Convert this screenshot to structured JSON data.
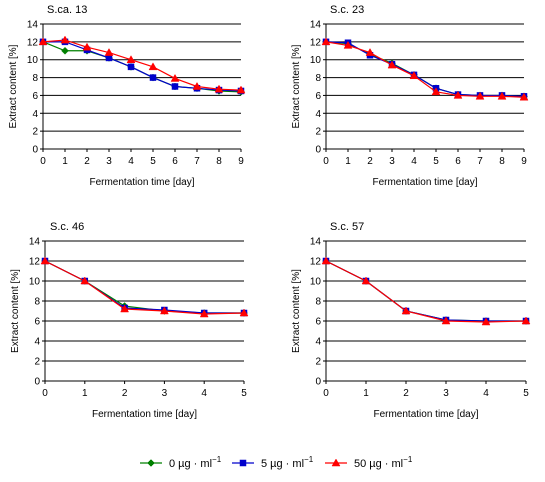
{
  "chart_data": [
    {
      "type": "line",
      "title": "S.ca. 13",
      "xlabel": "Fermentation time [day]",
      "ylabel": "Extract content [%]",
      "xlim": [
        0,
        9
      ],
      "ylim": [
        0,
        14
      ],
      "xticks": [
        0,
        1,
        2,
        3,
        4,
        5,
        6,
        7,
        8,
        9
      ],
      "yticks": [
        0,
        2,
        4,
        6,
        8,
        10,
        12,
        14
      ],
      "grid": "horizontal",
      "series": [
        {
          "name": "0 µg·ml⁻¹",
          "x": [
            0,
            1,
            2,
            3,
            4,
            5,
            6,
            7,
            8,
            9
          ],
          "y": [
            12,
            11,
            11,
            10.2,
            9.2,
            8.0,
            7.0,
            6.8,
            6.5,
            6.4
          ]
        },
        {
          "name": "5 µg·ml⁻¹",
          "x": [
            0,
            1,
            2,
            3,
            4,
            5,
            6,
            7,
            8,
            9
          ],
          "y": [
            12,
            12,
            11.1,
            10.2,
            9.2,
            8.0,
            7.0,
            6.8,
            6.6,
            6.5
          ]
        },
        {
          "name": "50 µg·ml⁻¹",
          "x": [
            0,
            1,
            2,
            3,
            4,
            5,
            6,
            7,
            8,
            9
          ],
          "y": [
            12,
            12.2,
            11.4,
            10.8,
            10.0,
            9.2,
            7.9,
            7.0,
            6.7,
            6.6
          ]
        }
      ]
    },
    {
      "type": "line",
      "title": "S.c. 23",
      "xlabel": "Fermentation time [day]",
      "ylabel": "Extract content [%]",
      "xlim": [
        0,
        9
      ],
      "ylim": [
        0,
        14
      ],
      "xticks": [
        0,
        1,
        2,
        3,
        4,
        5,
        6,
        7,
        8,
        9
      ],
      "yticks": [
        0,
        2,
        4,
        6,
        8,
        10,
        12,
        14
      ],
      "grid": "horizontal",
      "series": [
        {
          "name": "0 µg·ml⁻¹",
          "x": [
            0,
            1,
            2,
            3,
            4,
            5,
            6,
            7,
            8,
            9
          ],
          "y": [
            12,
            11.8,
            10.6,
            9.6,
            8.3,
            6.8,
            6.1,
            6.0,
            6.0,
            5.9
          ]
        },
        {
          "name": "5 µg·ml⁻¹",
          "x": [
            0,
            1,
            2,
            3,
            4,
            5,
            6,
            7,
            8,
            9
          ],
          "y": [
            12,
            11.9,
            10.5,
            9.5,
            8.3,
            6.8,
            6.1,
            6.0,
            6.0,
            5.9
          ]
        },
        {
          "name": "50 µg·ml⁻¹",
          "x": [
            0,
            1,
            2,
            3,
            4,
            5,
            6,
            7,
            8,
            9
          ],
          "y": [
            12,
            11.6,
            10.8,
            9.4,
            8.2,
            6.4,
            6.0,
            5.9,
            5.9,
            5.8
          ]
        }
      ]
    },
    {
      "type": "line",
      "title": "S.c. 46",
      "xlabel": "Fermentation time [day]",
      "ylabel": "Extract content [%]",
      "xlim": [
        0,
        5
      ],
      "ylim": [
        0,
        14
      ],
      "xticks": [
        0,
        1,
        2,
        3,
        4,
        5
      ],
      "yticks": [
        0,
        2,
        4,
        6,
        8,
        10,
        12,
        14
      ],
      "grid": "horizontal",
      "series": [
        {
          "name": "0 µg·ml⁻¹",
          "x": [
            0,
            1,
            2,
            3,
            4,
            5
          ],
          "y": [
            12,
            10,
            7.5,
            7.0,
            6.8,
            6.8
          ]
        },
        {
          "name": "5 µg·ml⁻¹",
          "x": [
            0,
            1,
            2,
            3,
            4,
            5
          ],
          "y": [
            12,
            10,
            7.3,
            7.1,
            6.8,
            6.8
          ]
        },
        {
          "name": "50 µg·ml⁻¹",
          "x": [
            0,
            1,
            2,
            3,
            4,
            5
          ],
          "y": [
            12,
            10,
            7.2,
            7.0,
            6.7,
            6.8
          ]
        }
      ]
    },
    {
      "type": "line",
      "title": "S.c. 57",
      "xlabel": "Fermentation time [day]",
      "ylabel": "Extract content [%]",
      "xlim": [
        0,
        5
      ],
      "ylim": [
        0,
        14
      ],
      "xticks": [
        0,
        1,
        2,
        3,
        4,
        5
      ],
      "yticks": [
        0,
        2,
        4,
        6,
        8,
        10,
        12,
        14
      ],
      "grid": "horizontal",
      "series": [
        {
          "name": "0 µg·ml⁻¹",
          "x": [
            0,
            1,
            2,
            3,
            4,
            5
          ],
          "y": [
            12,
            10,
            7.0,
            6.1,
            6.0,
            6.0
          ]
        },
        {
          "name": "5 µg·ml⁻¹",
          "x": [
            0,
            1,
            2,
            3,
            4,
            5
          ],
          "y": [
            12,
            10,
            7.0,
            6.1,
            6.0,
            6.0
          ]
        },
        {
          "name": "50 µg·ml⁻¹",
          "x": [
            0,
            1,
            2,
            3,
            4,
            5
          ],
          "y": [
            12,
            10,
            7.0,
            6.0,
            5.9,
            6.0
          ]
        }
      ]
    }
  ],
  "legend": {
    "position": "bottom-center",
    "items": [
      {
        "label": "0  µg · ml",
        "superscript": "−1",
        "color": "#008000",
        "marker": "diamond"
      },
      {
        "label": "5  µg · ml",
        "superscript": "−1",
        "color": "#0000cc",
        "marker": "square"
      },
      {
        "label": "50  µg · ml",
        "superscript": "−1",
        "color": "#ff0000",
        "marker": "triangle"
      }
    ]
  },
  "colors": {
    "series": [
      "#008000",
      "#0000cc",
      "#ff0000"
    ],
    "axis": "#000000",
    "grid": "#000000"
  }
}
